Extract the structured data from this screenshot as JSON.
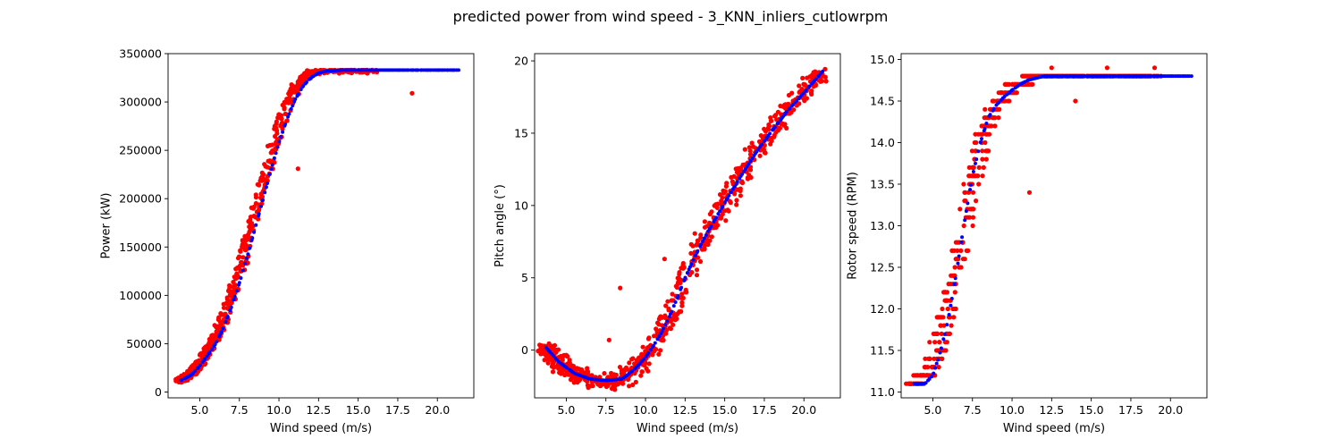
{
  "figure": {
    "title": "predicted power from wind speed - 3_KNN_inliers_cutlowrpm",
    "colors": {
      "actual": "#ff0000",
      "predicted": "#0000ff",
      "axes": "#000000",
      "background": "#ffffff"
    }
  },
  "chart_data": [
    {
      "type": "scatter",
      "xlabel": "Wind speed (m/s)",
      "ylabel": "Power (kW)",
      "xlim": [
        3.0,
        22.3
      ],
      "ylim": [
        -6000,
        350000
      ],
      "xticks": [
        5.0,
        7.5,
        10.0,
        12.5,
        15.0,
        17.5,
        20.0
      ],
      "xtick_labels": [
        "5.0",
        "7.5",
        "10.0",
        "12.5",
        "15.0",
        "17.5",
        "20.0"
      ],
      "yticks": [
        0,
        50000,
        100000,
        150000,
        200000,
        250000,
        300000,
        350000
      ],
      "ytick_labels": [
        "0",
        "50000",
        "100000",
        "150000",
        "200000",
        "250000",
        "300000",
        "350000"
      ],
      "grid": false,
      "series": [
        {
          "color": "#ff0000",
          "marker_size": 2.6,
          "band": 2500,
          "spread": 0.35,
          "count": 700,
          "x": [
            3.8,
            4.5,
            5.0,
            5.5,
            6.0,
            6.5,
            7.0,
            7.5,
            8.0,
            8.5,
            9.0,
            9.5,
            10.0,
            10.5,
            11.0,
            11.5,
            12.0,
            12.5,
            13.0,
            14.0,
            15.0,
            16.0
          ],
          "y": [
            12000,
            20000,
            30000,
            42000,
            56000,
            75000,
            98000,
            125000,
            155000,
            185000,
            215000,
            245000,
            272000,
            295000,
            313000,
            324000,
            330000,
            332000,
            333000,
            333000,
            333000,
            333000
          ],
          "outliers": [
            {
              "x": 18.4,
              "y": 309000
            },
            {
              "x": 11.2,
              "y": 231000
            }
          ]
        },
        {
          "color": "#0000ff",
          "marker_size": 2.0,
          "band": 0,
          "spread": 0,
          "count": 170,
          "x": [
            3.8,
            4.5,
            5.0,
            5.5,
            6.0,
            6.5,
            7.0,
            7.5,
            8.0,
            8.5,
            9.0,
            9.5,
            10.0,
            10.5,
            11.0,
            11.5,
            12.0,
            12.5,
            13.0,
            14.0,
            15.0,
            21.3
          ],
          "y": [
            12000,
            18000,
            27000,
            38000,
            50000,
            67000,
            88000,
            113000,
            140000,
            170000,
            200000,
            230000,
            258000,
            282000,
            302000,
            316000,
            325000,
            330000,
            332000,
            333000,
            333000,
            333000
          ]
        }
      ]
    },
    {
      "type": "scatter",
      "xlabel": "Wind speed (m/s)",
      "ylabel": "Pitch angle (°)",
      "xlim": [
        3.0,
        22.3
      ],
      "ylim": [
        -3.3,
        20.5
      ],
      "xticks": [
        5.0,
        7.5,
        10.0,
        12.5,
        15.0,
        17.5,
        20.0
      ],
      "xtick_labels": [
        "5.0",
        "7.5",
        "10.0",
        "12.5",
        "15.0",
        "17.5",
        "20.0"
      ],
      "yticks": [
        0,
        5,
        10,
        15,
        20
      ],
      "ytick_labels": [
        "0",
        "5",
        "10",
        "15",
        "20"
      ],
      "grid": false,
      "series": [
        {
          "color": "#ff0000",
          "marker_size": 2.6,
          "band": 0.45,
          "spread": 0.55,
          "count": 700,
          "x": [
            3.7,
            4.5,
            5.5,
            6.5,
            7.5,
            8.5,
            9.0,
            9.5,
            10.0,
            10.5,
            11.0,
            11.5,
            12.0,
            12.5,
            13.0,
            13.5,
            14.0,
            15.0,
            16.0,
            17.0,
            18.0,
            19.0,
            20.0,
            21.2
          ],
          "y": [
            0.2,
            -0.8,
            -1.6,
            -2.0,
            -2.1,
            -2.0,
            -1.6,
            -1.1,
            -0.5,
            0.3,
            1.2,
            2.3,
            3.6,
            5.0,
            6.2,
            7.3,
            8.3,
            10.2,
            12.0,
            13.7,
            15.2,
            16.6,
            17.8,
            19.3
          ],
          "outliers": [
            {
              "x": 8.4,
              "y": 4.3
            },
            {
              "x": 11.2,
              "y": 6.3
            },
            {
              "x": 7.7,
              "y": 0.7
            }
          ]
        },
        {
          "color": "#0000ff",
          "marker_size": 2.0,
          "band": 0,
          "spread": 0,
          "count": 170,
          "x": [
            3.7,
            4.5,
            5.5,
            6.5,
            7.5,
            8.5,
            9.0,
            9.5,
            10.0,
            10.5,
            11.0,
            11.5,
            12.0,
            12.5,
            13.0,
            13.5,
            14.0,
            15.0,
            16.0,
            17.0,
            18.0,
            19.0,
            20.0,
            21.2
          ],
          "y": [
            0.2,
            -0.8,
            -1.6,
            -2.0,
            -2.1,
            -2.0,
            -1.6,
            -1.1,
            -0.5,
            0.3,
            1.2,
            2.3,
            3.6,
            5.0,
            6.2,
            7.3,
            8.3,
            10.2,
            12.0,
            13.7,
            15.2,
            16.6,
            17.8,
            19.3
          ]
        }
      ]
    },
    {
      "type": "scatter",
      "xlabel": "Wind speed (m/s)",
      "ylabel": "Rotor speed (RPM)",
      "xlim": [
        3.0,
        22.3
      ],
      "ylim": [
        10.93,
        15.07
      ],
      "xticks": [
        5.0,
        7.5,
        10.0,
        12.5,
        15.0,
        17.5,
        20.0
      ],
      "xtick_labels": [
        "5.0",
        "7.5",
        "10.0",
        "12.5",
        "15.0",
        "17.5",
        "20.0"
      ],
      "yticks": [
        11.0,
        11.5,
        12.0,
        12.5,
        13.0,
        13.5,
        14.0,
        14.5,
        15.0
      ],
      "ytick_labels": [
        "11.0",
        "11.5",
        "12.0",
        "12.5",
        "13.0",
        "13.5",
        "14.0",
        "14.5",
        "15.0"
      ],
      "grid": false,
      "series": [
        {
          "color": "#ff0000",
          "marker_size": 2.6,
          "band": 0,
          "spread": 0.55,
          "quantize": 0.1,
          "count": 650,
          "x": [
            3.8,
            4.5,
            5.0,
            5.5,
            6.0,
            6.5,
            7.0,
            7.5,
            8.0,
            8.5,
            9.0,
            9.5,
            10.0,
            10.5,
            11.0,
            12.0,
            13.0,
            15.0,
            19.0
          ],
          "y": [
            11.1,
            11.2,
            11.35,
            11.65,
            12.0,
            12.5,
            13.0,
            13.55,
            13.95,
            14.25,
            14.45,
            14.58,
            14.66,
            14.72,
            14.76,
            14.8,
            14.8,
            14.8,
            14.8
          ],
          "outliers": [
            {
              "x": 11.1,
              "y": 13.4
            },
            {
              "x": 14.0,
              "y": 14.5
            },
            {
              "x": 12.5,
              "y": 14.9
            },
            {
              "x": 16.0,
              "y": 14.9
            },
            {
              "x": 19.0,
              "y": 14.9
            }
          ]
        },
        {
          "color": "#0000ff",
          "marker_size": 2.0,
          "band": 0,
          "spread": 0,
          "count": 160,
          "x": [
            3.8,
            4.5,
            5.0,
            5.5,
            6.0,
            6.5,
            7.0,
            7.5,
            8.0,
            8.5,
            9.0,
            9.5,
            10.0,
            10.5,
            11.0,
            12.0,
            13.0,
            15.0,
            21.3
          ],
          "y": [
            11.1,
            11.1,
            11.2,
            11.5,
            11.9,
            12.45,
            13.05,
            13.6,
            14.0,
            14.3,
            14.45,
            14.55,
            14.63,
            14.7,
            14.75,
            14.8,
            14.8,
            14.8,
            14.8
          ]
        }
      ]
    }
  ]
}
